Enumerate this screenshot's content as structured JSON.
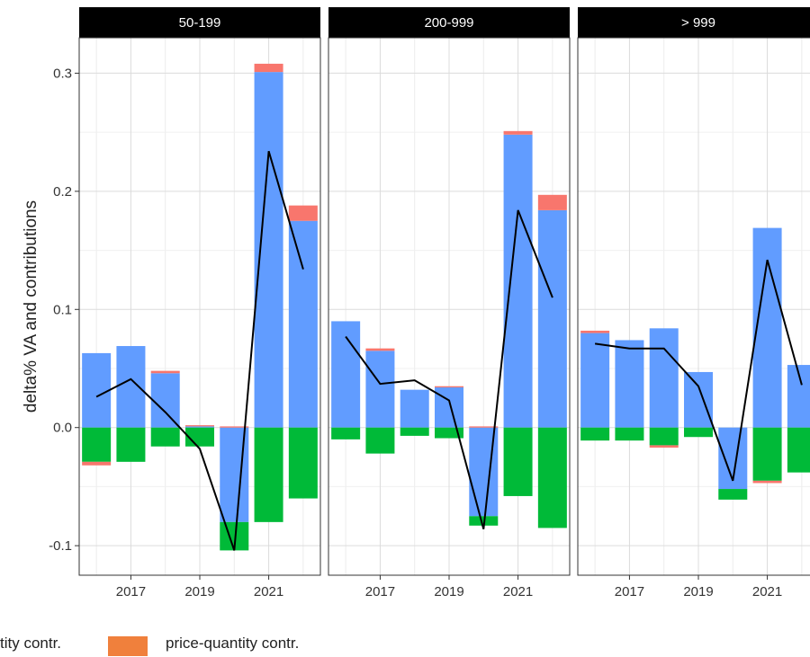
{
  "chart_data": {
    "type": "bar",
    "ylabel": "delta% VA and contributions",
    "xlabel": "",
    "ylim": [
      -0.125,
      0.33
    ],
    "yticks": [
      -0.1,
      0.0,
      0.1,
      0.2,
      0.3
    ],
    "ytick_labels": [
      "-0.1",
      "0.0",
      "0.1",
      "0.2",
      "0.3"
    ],
    "x": [
      2016,
      2017,
      2018,
      2019,
      2020,
      2021,
      2022
    ],
    "xlim": [
      2015.5,
      2022.5
    ],
    "xticks": [
      2017,
      2019,
      2021
    ],
    "xtick_labels": [
      "2017",
      "2019",
      "2021"
    ],
    "grid": true,
    "series_colors": {
      "quantity": "#619CFF",
      "price": "#F8766D",
      "negative": "#00BA38",
      "line": "#000000"
    },
    "panels": [
      {
        "title": "50-199",
        "quantity": [
          0.063,
          0.069,
          0.046,
          0.001,
          -0.08,
          0.301,
          0.175
        ],
        "price": [
          0.0,
          0.0,
          0.002,
          0.001,
          0.001,
          0.007,
          0.013
        ],
        "negative": [
          -0.029,
          -0.029,
          -0.016,
          -0.016,
          -0.024,
          -0.08,
          -0.06
        ],
        "negative_price": [
          -0.003,
          0.0,
          0.0,
          0.0,
          0.0,
          0.0,
          0.0
        ],
        "line": [
          0.026,
          0.041,
          0.013,
          -0.018,
          -0.104,
          0.234,
          0.134
        ]
      },
      {
        "title": "200-999",
        "quantity": [
          0.09,
          0.065,
          0.032,
          0.034,
          -0.075,
          0.248,
          0.184
        ],
        "price": [
          0.0,
          0.002,
          0.0,
          0.001,
          0.001,
          0.003,
          0.013
        ],
        "negative": [
          -0.01,
          -0.022,
          -0.007,
          -0.009,
          -0.008,
          -0.058,
          -0.085
        ],
        "negative_price": [
          0.0,
          0.0,
          0.0,
          0.0,
          0.0,
          0.0,
          0.0
        ],
        "line": [
          0.077,
          0.037,
          0.04,
          0.023,
          -0.086,
          0.184,
          0.11
        ]
      },
      {
        "title": "> 999",
        "quantity": [
          0.08,
          0.074,
          0.084,
          0.047,
          -0.052,
          0.169,
          0.053
        ],
        "price": [
          0.002,
          0.0,
          0.0,
          0.0,
          0.0,
          0.0,
          0.0
        ],
        "negative": [
          -0.011,
          -0.011,
          -0.015,
          -0.008,
          -0.009,
          -0.045,
          -0.038
        ],
        "negative_price": [
          0.0,
          0.0,
          -0.002,
          0.0,
          0.0,
          -0.002,
          0.0
        ],
        "line": [
          0.071,
          0.067,
          0.067,
          0.035,
          -0.045,
          0.142,
          0.036
        ]
      }
    ]
  },
  "legend": {
    "items": [
      {
        "label": "tity contr.",
        "color": "#619CFF"
      },
      {
        "label": "price-quantity contr.",
        "color": "#F0803C"
      }
    ]
  }
}
